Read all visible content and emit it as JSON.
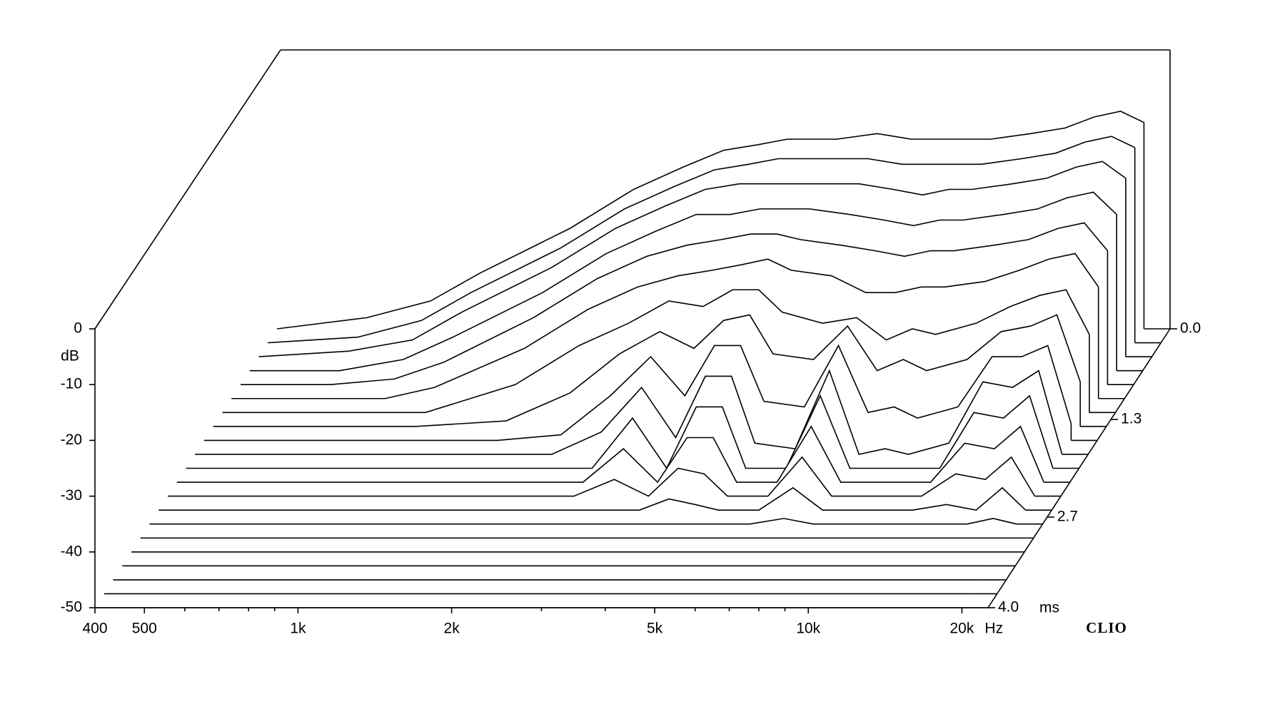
{
  "chart_data": {
    "type": "waterfall",
    "y_label": "dB",
    "x_unit": "Hz",
    "z_unit": "ms",
    "brand": "CLIO",
    "xlim": [
      400,
      22500
    ],
    "xticks": [
      400,
      500,
      {
        "value": 1000,
        "label": "1k"
      },
      {
        "value": 2000,
        "label": "2k"
      },
      {
        "value": 5000,
        "label": "5k"
      },
      {
        "value": 10000,
        "label": "10k"
      },
      {
        "value": 20000,
        "label": "20k"
      }
    ],
    "xminorticks": [
      600,
      700,
      800,
      900,
      3000,
      4000,
      6000,
      7000,
      8000,
      9000
    ],
    "ylim": [
      -50,
      0
    ],
    "yticks": [
      0,
      -10,
      -20,
      -30,
      -40,
      -50
    ],
    "zlim": [
      0,
      4
    ],
    "zticks": [
      {
        "value": 0,
        "label": "0.0"
      },
      1.3,
      2.7,
      {
        "value": 4,
        "label": "4.0"
      }
    ],
    "log_x": true,
    "grid": false,
    "color": "#000000",
    "x": [
      400,
      600,
      800,
      1000,
      1500,
      2000,
      2500,
      3000,
      3500,
      4000,
      4500,
      5000,
      6000,
      7000,
      8000,
      9000,
      10000,
      12000,
      14000,
      16000,
      18000,
      20000
    ],
    "z": [
      0,
      0.2,
      0.4,
      0.6,
      0.8,
      1.0,
      1.2,
      1.4,
      1.6,
      1.8,
      2.0,
      2.2,
      2.4,
      2.6,
      2.8,
      3.0,
      3.2,
      3.4,
      3.6,
      3.8,
      4.0
    ],
    "series": [
      {
        "values": [
          -50,
          -48,
          -45,
          -40,
          -32,
          -25,
          -21,
          -18,
          -17,
          -16,
          -16,
          -16,
          -15,
          -16,
          -16,
          -16,
          -16,
          -15,
          -14,
          -12,
          -11,
          -13
        ]
      },
      {
        "values": [
          -50,
          -49,
          -46,
          -41,
          -33,
          -26,
          -22,
          -19,
          -18,
          -17,
          -17,
          -17,
          -17,
          -18,
          -18,
          -18,
          -18,
          -17,
          -16,
          -14,
          -13,
          -15
        ]
      },
      {
        "values": [
          -50,
          -49,
          -47,
          -42,
          -34,
          -27,
          -23,
          -20,
          -19,
          -19,
          -19,
          -19,
          -19,
          -20,
          -21,
          -20,
          -20,
          -19,
          -18,
          -16,
          -15,
          -18
        ]
      },
      {
        "values": [
          -50,
          -50,
          -48,
          -44,
          -36,
          -29,
          -25,
          -22,
          -22,
          -21,
          -21,
          -21,
          -22,
          -23,
          -24,
          -23,
          -23,
          -22,
          -21,
          -19,
          -18,
          -22
        ]
      },
      {
        "values": [
          -50,
          -50,
          -49,
          -46,
          -38,
          -31,
          -27,
          -25,
          -24,
          -23,
          -23,
          -24,
          -25,
          -26,
          -27,
          -26,
          -26,
          -25,
          -24,
          -22,
          -21,
          -26
        ]
      },
      {
        "values": [
          -50,
          -50,
          -50,
          -48,
          -41,
          -34,
          -30,
          -28,
          -27,
          -26,
          -25,
          -27,
          -28,
          -31,
          -31,
          -30,
          -30,
          -29,
          -27,
          -25,
          -24,
          -30
        ]
      },
      {
        "values": [
          -50,
          -50,
          -50,
          -50,
          -45,
          -38,
          -34,
          -30,
          -31,
          -28,
          -28,
          -32,
          -34,
          -33,
          -37,
          -35,
          -36,
          -34,
          -31,
          -29,
          -28,
          -36
        ]
      },
      {
        "values": [
          -50,
          -50,
          -50,
          -50,
          -49,
          -44,
          -37,
          -33,
          -36,
          -31,
          -30,
          -37,
          -38,
          -32,
          -40,
          -38,
          -40,
          -38,
          -33,
          -32,
          -30,
          -42
        ]
      },
      {
        "values": [
          -50,
          -50,
          -50,
          -50,
          -50,
          -49,
          -42,
          -35,
          -42,
          -33,
          -33,
          -43,
          -44,
          -33,
          -45,
          -44,
          -46,
          -44,
          -35,
          -35,
          -33,
          -47
        ]
      },
      {
        "values": [
          -50,
          -50,
          -50,
          -50,
          -50,
          -50,
          -46,
          -38,
          -47,
          -36,
          -36,
          -48,
          -49,
          -35,
          -50,
          -49,
          -50,
          -48,
          -37,
          -38,
          -35,
          -50
        ]
      },
      {
        "values": [
          -50,
          -50,
          -50,
          -50,
          -50,
          -50,
          -50,
          -41,
          -50,
          -39,
          -39,
          -50,
          -50,
          -37,
          -50,
          -50,
          -50,
          -50,
          -40,
          -41,
          -37,
          -50
        ]
      },
      {
        "values": [
          -50,
          -50,
          -50,
          -50,
          -50,
          -50,
          -50,
          -44,
          -50,
          -42,
          -42,
          -50,
          -50,
          -40,
          -50,
          -50,
          -50,
          -50,
          -43,
          -44,
          -40,
          -50
        ]
      },
      {
        "values": [
          -50,
          -50,
          -50,
          -50,
          -50,
          -50,
          -50,
          -47,
          -50,
          -45,
          -46,
          -50,
          -50,
          -43,
          -50,
          -50,
          -50,
          -50,
          -46,
          -47,
          -43,
          -50
        ]
      },
      {
        "values": [
          -50,
          -50,
          -50,
          -50,
          -50,
          -50,
          -50,
          -50,
          -50,
          -48,
          -49,
          -50,
          -50,
          -46,
          -50,
          -50,
          -50,
          -50,
          -49,
          -50,
          -46,
          -50
        ]
      },
      {
        "values": [
          -50,
          -50,
          -50,
          -50,
          -50,
          -50,
          -50,
          -50,
          -50,
          -50,
          -50,
          -50,
          -50,
          -49,
          -50,
          -50,
          -50,
          -50,
          -50,
          -50,
          -49,
          -50
        ]
      },
      {
        "values": [
          -50,
          -50,
          -50,
          -50,
          -50,
          -50,
          -50,
          -50,
          -50,
          -50,
          -50,
          -50,
          -50,
          -50,
          -50,
          -50,
          -50,
          -50,
          -50,
          -50,
          -50,
          -50
        ]
      },
      {
        "values": [
          -50,
          -50,
          -50,
          -50,
          -50,
          -50,
          -50,
          -50,
          -50,
          -50,
          -50,
          -50,
          -50,
          -50,
          -50,
          -50,
          -50,
          -50,
          -50,
          -50,
          -50,
          -50
        ]
      },
      {
        "values": [
          -50,
          -50,
          -50,
          -50,
          -50,
          -50,
          -50,
          -50,
          -50,
          -50,
          -50,
          -50,
          -50,
          -50,
          -50,
          -50,
          -50,
          -50,
          -50,
          -50,
          -50,
          -50
        ]
      },
      {
        "values": [
          -50,
          -50,
          -50,
          -50,
          -50,
          -50,
          -50,
          -50,
          -50,
          -50,
          -50,
          -50,
          -50,
          -50,
          -50,
          -50,
          -50,
          -50,
          -50,
          -50,
          -50,
          -50
        ]
      },
      {
        "values": [
          -50,
          -50,
          -50,
          -50,
          -50,
          -50,
          -50,
          -50,
          -50,
          -50,
          -50,
          -50,
          -50,
          -50,
          -50,
          -50,
          -50,
          -50,
          -50,
          -50,
          -50,
          -50
        ]
      },
      {
        "values": [
          -50,
          -50,
          -50,
          -50,
          -50,
          -50,
          -50,
          -50,
          -50,
          -50,
          -50,
          -50,
          -50,
          -50,
          -50,
          -50,
          -50,
          -50,
          -50,
          -50,
          -50,
          -50
        ]
      }
    ]
  }
}
